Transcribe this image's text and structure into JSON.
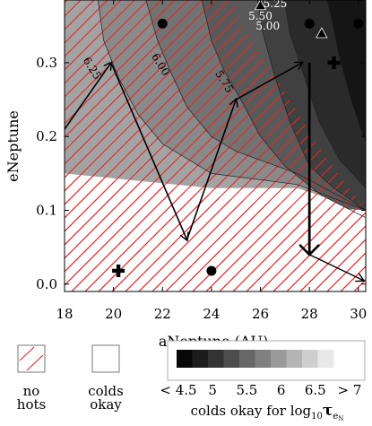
{
  "chart_data": {
    "type": "heatmap",
    "xlabel": "aNeptune (AU)",
    "ylabel": "eNeptune",
    "xlim": [
      18,
      30.3
    ],
    "ylim": [
      -0.01,
      0.385
    ],
    "xticks": [
      "18",
      "20",
      "22",
      "24",
      "26",
      "28",
      "30"
    ],
    "yticks": [
      "0.0",
      "0.1",
      "0.2",
      "0.3"
    ],
    "grid": false,
    "colorbar": {
      "ticks": [
        "< 4.5",
        "5",
        "5.5",
        "6",
        "6.5",
        "> 7"
      ],
      "label_prefix": "colds okay for log",
      "label_sub1": "10",
      "label_tau": "τ",
      "label_sub2": "e",
      "label_sub3": "N",
      "shades": [
        "#080808",
        "#1c1c1c",
        "#333333",
        "#4d4d4d",
        "#676767",
        "#808080",
        "#9a9a9a",
        "#b4b4b4",
        "#cecece",
        "#e8e8e8"
      ]
    },
    "legend": {
      "nohots_line1": "no",
      "nohots_line2": "hots",
      "colds_line1": "colds",
      "colds_line2": "okay"
    },
    "contours": [
      {
        "label": "6.25",
        "x": 19.0,
        "y": 0.29
      },
      {
        "label": "6.00",
        "x": 21.8,
        "y": 0.295
      },
      {
        "label": "5.75",
        "x": 24.4,
        "y": 0.272
      },
      {
        "label": "5.50",
        "x": 26.0,
        "y": 0.358
      },
      {
        "label": "5.25",
        "x": 26.6,
        "y": 0.375
      },
      {
        "label": "5.00",
        "x": 26.3,
        "y": 0.345
      }
    ],
    "path_thin": [
      [
        18.0,
        0.21
      ],
      [
        19.9,
        0.3
      ],
      [
        23.0,
        0.06
      ],
      [
        25.0,
        0.25
      ],
      [
        27.7,
        0.3
      ]
    ],
    "path_thick": [
      [
        28.0,
        0.3
      ],
      [
        28.0,
        0.04
      ]
    ],
    "path_tail": [
      [
        28.0,
        0.04
      ],
      [
        30.2,
        0.005
      ]
    ],
    "markers": [
      {
        "shape": "circle",
        "x": 22.0,
        "y": 0.353
      },
      {
        "shape": "circle",
        "x": 28.0,
        "y": 0.353
      },
      {
        "shape": "circle",
        "x": 30.0,
        "y": 0.353
      },
      {
        "shape": "circle",
        "x": 24.0,
        "y": 0.018
      },
      {
        "shape": "triangle",
        "x": 26.0,
        "y": 0.378
      },
      {
        "shape": "triangle",
        "x": 28.5,
        "y": 0.34
      },
      {
        "shape": "plus",
        "x": 29.0,
        "y": 0.3
      },
      {
        "shape": "plus",
        "x": 20.2,
        "y": 0.018
      }
    ]
  }
}
